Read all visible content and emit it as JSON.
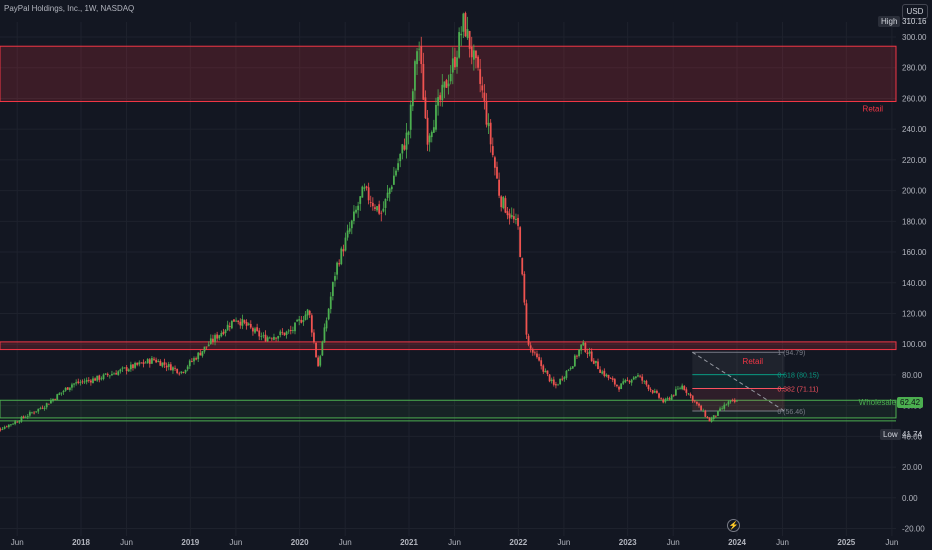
{
  "header": {
    "title": "PayPal Holdings, Inc., 1W, NASDAQ",
    "currency_button": "USD"
  },
  "markers": {
    "high_label": "High",
    "high_value": "310.16",
    "low_label": "Low",
    "low_value": "41.74",
    "last_value": "62.42"
  },
  "colors": {
    "bg": "#131722",
    "up": "#4caf50",
    "down": "#ef5350",
    "zone_red": "#f23645",
    "zone_green": "#4caf50",
    "grid": "#1e222d",
    "text": "#b2b5be"
  },
  "chart_data": {
    "type": "candlestick",
    "title": "PayPal Holdings, Inc., 1W, NASDAQ",
    "y_axis": {
      "range": [
        -20,
        318
      ],
      "ticks": [
        -20,
        0,
        20,
        40,
        60,
        80,
        100,
        120,
        140,
        160,
        180,
        200,
        220,
        240,
        260,
        280,
        300
      ]
    },
    "x_axis": {
      "range": [
        "2017-03",
        "2025-12"
      ],
      "ticks": [
        {
          "date": "2017-06",
          "label": "Jun"
        },
        {
          "date": "2018-01",
          "label": "2018"
        },
        {
          "date": "2018-06",
          "label": "Jun"
        },
        {
          "date": "2019-01",
          "label": "2019"
        },
        {
          "date": "2019-06",
          "label": "Jun"
        },
        {
          "date": "2020-01",
          "label": "2020"
        },
        {
          "date": "2020-06",
          "label": "Jun"
        },
        {
          "date": "2021-01",
          "label": "2021"
        },
        {
          "date": "2021-06",
          "label": "Jun"
        },
        {
          "date": "2022-01",
          "label": "2022"
        },
        {
          "date": "2022-06",
          "label": "Jun"
        },
        {
          "date": "2023-01",
          "label": "2023"
        },
        {
          "date": "2023-06",
          "label": "Jun"
        },
        {
          "date": "2024-01",
          "label": "2024"
        },
        {
          "date": "2024-06",
          "label": "Jun"
        },
        {
          "date": "2025-01",
          "label": "2025"
        },
        {
          "date": "2025-06",
          "label": "Jun"
        }
      ]
    },
    "price_path": [
      [
        "2017-03",
        42
      ],
      [
        "2017-06",
        50
      ],
      [
        "2017-09",
        60
      ],
      [
        "2017-12",
        74
      ],
      [
        "2018-03",
        78
      ],
      [
        "2018-06",
        84
      ],
      [
        "2018-09",
        90
      ],
      [
        "2018-12",
        82
      ],
      [
        "2019-03",
        100
      ],
      [
        "2019-06",
        117
      ],
      [
        "2019-09",
        104
      ],
      [
        "2019-12",
        108
      ],
      [
        "2020-02",
        122
      ],
      [
        "2020-03",
        85
      ],
      [
        "2020-05",
        150
      ],
      [
        "2020-08",
        200
      ],
      [
        "2020-10",
        185
      ],
      [
        "2021-01",
        240
      ],
      [
        "2021-02",
        300
      ],
      [
        "2021-03",
        235
      ],
      [
        "2021-06",
        285
      ],
      [
        "2021-07",
        310
      ],
      [
        "2021-09",
        265
      ],
      [
        "2021-11",
        195
      ],
      [
        "2022-01",
        175
      ],
      [
        "2022-02",
        100
      ],
      [
        "2022-05",
        72
      ],
      [
        "2022-07",
        88
      ],
      [
        "2022-08",
        100
      ],
      [
        "2022-10",
        83
      ],
      [
        "2022-12",
        72
      ],
      [
        "2023-02",
        80
      ],
      [
        "2023-05",
        62
      ],
      [
        "2023-07",
        73
      ],
      [
        "2023-10",
        50
      ],
      [
        "2023-12",
        62
      ],
      [
        "2024-01",
        62.42
      ]
    ],
    "zones": [
      {
        "label": "Retail",
        "color": "red",
        "from": 258,
        "to": 294
      },
      {
        "label": "Retail",
        "color": "red",
        "from": 96.5,
        "to": 101.5
      },
      {
        "label": "Wholesale",
        "color": "green",
        "from": 52,
        "to": 63.5
      }
    ],
    "fibonacci": {
      "start": "2023-07",
      "end": "2024-06",
      "levels": [
        {
          "ratio": "1",
          "price": 94.79
        },
        {
          "ratio": "0.618",
          "price": 80.15
        },
        {
          "ratio": "0.382",
          "price": 71.11
        },
        {
          "ratio": "0",
          "price": 56.46
        }
      ]
    }
  }
}
